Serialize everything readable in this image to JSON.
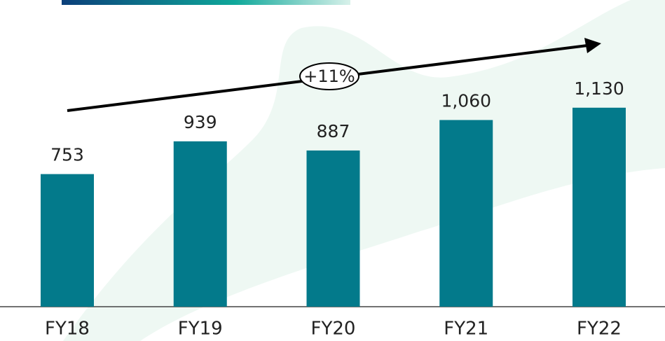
{
  "chart_data": {
    "type": "bar",
    "categories": [
      "FY18",
      "FY19",
      "FY20",
      "FY21",
      "FY22"
    ],
    "values": [
      753,
      939,
      887,
      1060,
      1130
    ],
    "value_labels": [
      "753",
      "939",
      "887",
      "1,060",
      "1,130"
    ],
    "color": "#037a8b",
    "annotation": "+11%"
  }
}
